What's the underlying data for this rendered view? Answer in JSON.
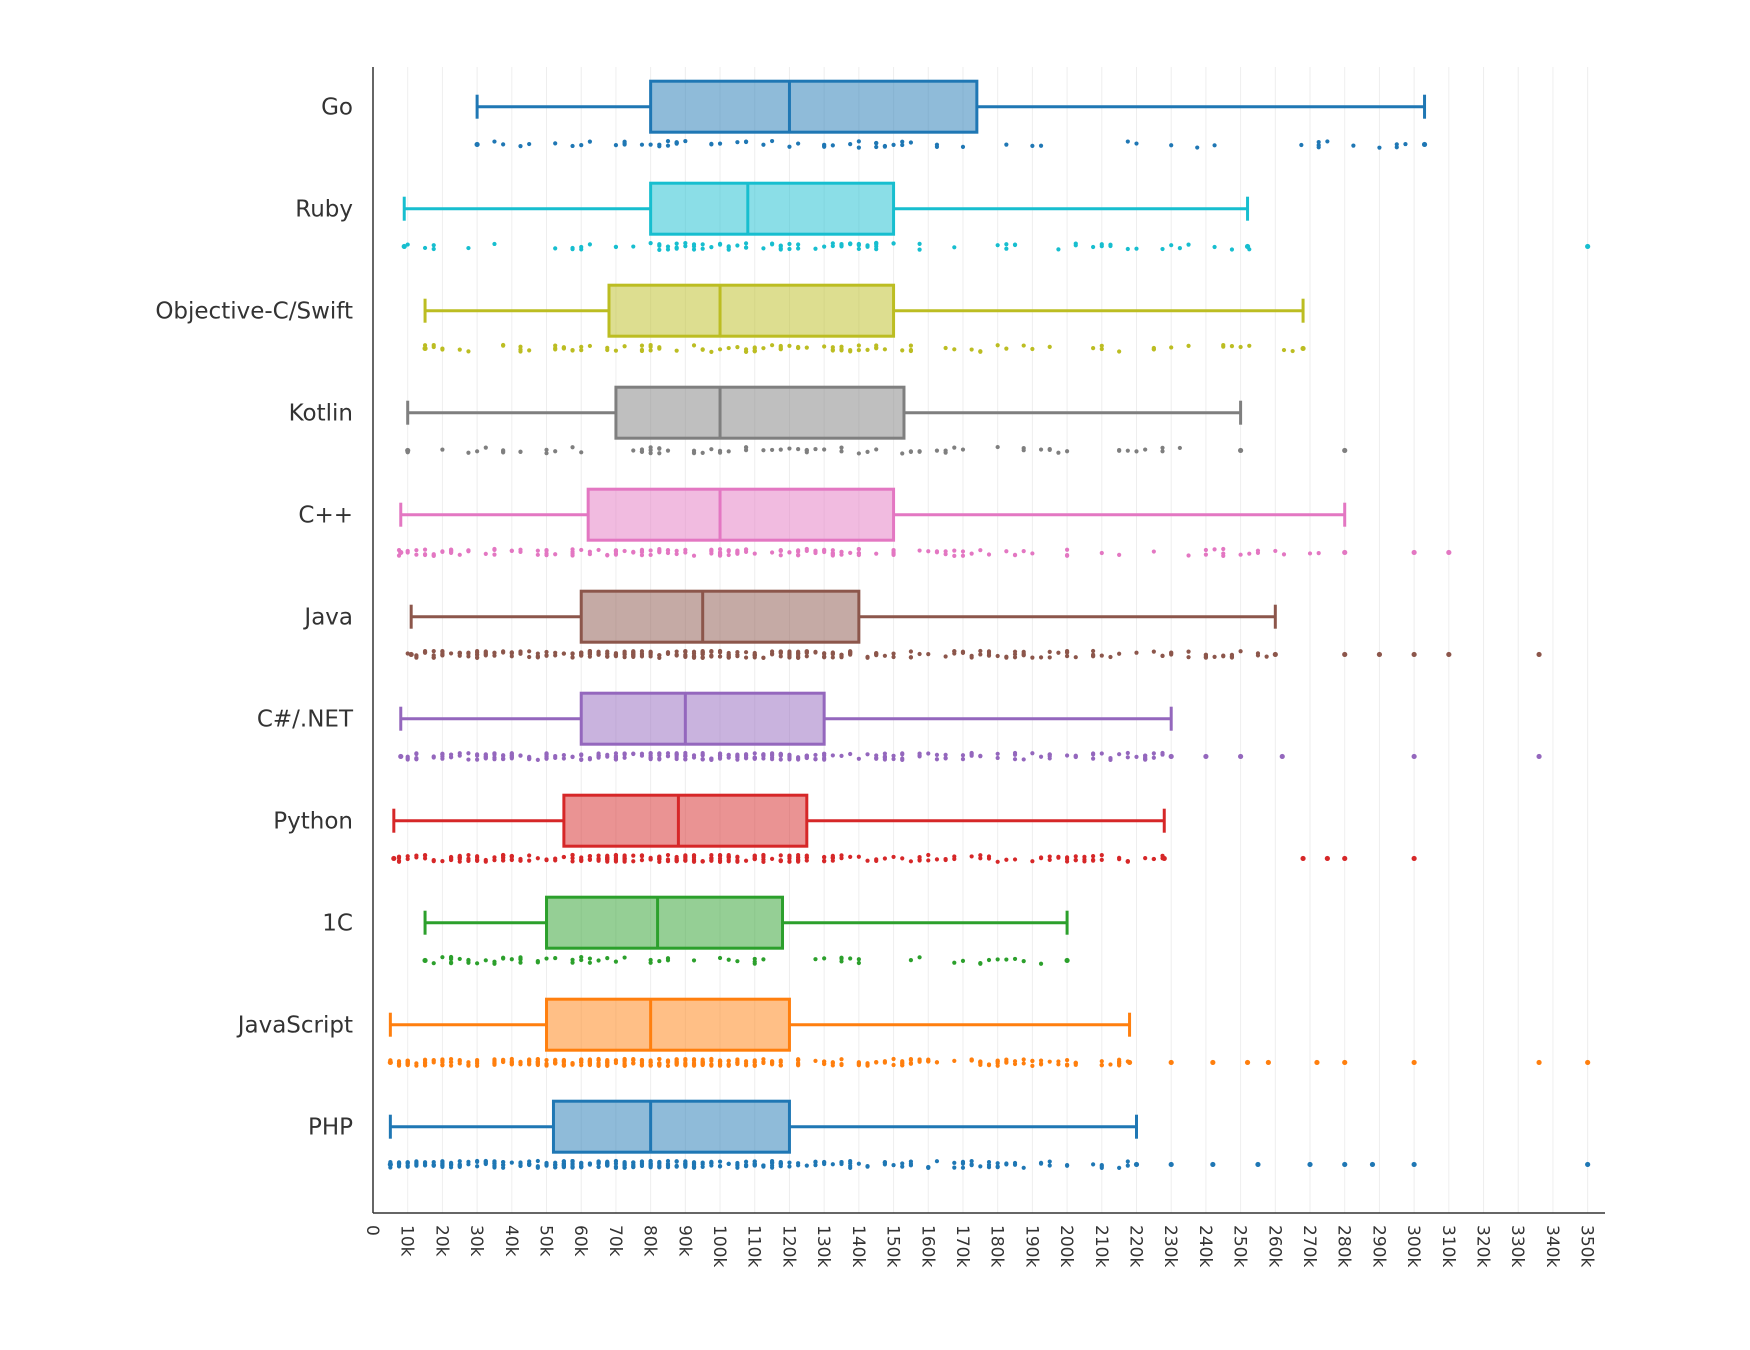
{
  "chart_data": {
    "type": "box",
    "orientation": "horizontal",
    "title": "",
    "xlabel": "",
    "ylabel": "",
    "xlim": [
      0,
      355000
    ],
    "grid": true,
    "legend": "none",
    "x_ticks": [
      0,
      10000,
      20000,
      30000,
      40000,
      50000,
      60000,
      70000,
      80000,
      90000,
      100000,
      110000,
      120000,
      130000,
      140000,
      150000,
      160000,
      170000,
      180000,
      190000,
      200000,
      210000,
      220000,
      230000,
      240000,
      250000,
      260000,
      270000,
      280000,
      290000,
      300000,
      310000,
      320000,
      330000,
      340000,
      350000
    ],
    "x_tick_labels": [
      "0",
      "10k",
      "20k",
      "30k",
      "40k",
      "50k",
      "60k",
      "70k",
      "80k",
      "90k",
      "100k",
      "110k",
      "120k",
      "130k",
      "140k",
      "150k",
      "160k",
      "170k",
      "180k",
      "190k",
      "200k",
      "210k",
      "220k",
      "230k",
      "240k",
      "250k",
      "260k",
      "270k",
      "280k",
      "290k",
      "300k",
      "310k",
      "320k",
      "330k",
      "340k",
      "350k"
    ],
    "categories": [
      "Go",
      "Ruby",
      "Objective-C/Swift",
      "Kotlin",
      "C++",
      "Java",
      "C#/.NET",
      "Python",
      "1C",
      "JavaScript",
      "PHP"
    ],
    "series": [
      {
        "name": "Go",
        "color": "#1f77b4",
        "min": 30000,
        "q1": 80000,
        "median": 120000,
        "q3": 174000,
        "max": 303000,
        "point_count": 70,
        "outliers": []
      },
      {
        "name": "Ruby",
        "color": "#17becf",
        "min": 9000,
        "q1": 80000,
        "median": 108000,
        "q3": 150000,
        "max": 252000,
        "point_count": 100,
        "outliers": [
          350000
        ]
      },
      {
        "name": "Objective-C/Swift",
        "color": "#bcbd22",
        "min": 15000,
        "q1": 68000,
        "median": 100000,
        "q3": 150000,
        "max": 268000,
        "point_count": 110,
        "outliers": []
      },
      {
        "name": "Kotlin",
        "color": "#7f7f7f",
        "min": 10000,
        "q1": 70000,
        "median": 100000,
        "q3": 153000,
        "max": 250000,
        "point_count": 80,
        "outliers": [
          280000
        ]
      },
      {
        "name": "C++",
        "color": "#e377c2",
        "min": 8000,
        "q1": 62000,
        "median": 100000,
        "q3": 150000,
        "max": 280000,
        "point_count": 180,
        "outliers": [
          300000,
          310000
        ]
      },
      {
        "name": "Java",
        "color": "#8c564b",
        "min": 11000,
        "q1": 60000,
        "median": 95000,
        "q3": 140000,
        "max": 260000,
        "point_count": 320,
        "outliers": [
          280000,
          290000,
          300000,
          310000,
          336000
        ]
      },
      {
        "name": "C#/.NET",
        "color": "#9467bd",
        "min": 8000,
        "q1": 60000,
        "median": 90000,
        "q3": 130000,
        "max": 230000,
        "point_count": 280,
        "outliers": [
          240000,
          250000,
          262000,
          300000,
          336000
        ]
      },
      {
        "name": "Python",
        "color": "#d62728",
        "min": 6000,
        "q1": 55000,
        "median": 88000,
        "q3": 125000,
        "max": 228000,
        "point_count": 280,
        "outliers": [
          268000,
          275000,
          280000,
          300000
        ]
      },
      {
        "name": "1C",
        "color": "#2ca02c",
        "min": 15000,
        "q1": 50000,
        "median": 82000,
        "q3": 118000,
        "max": 200000,
        "point_count": 70,
        "outliers": []
      },
      {
        "name": "JavaScript",
        "color": "#ff7f0e",
        "min": 5000,
        "q1": 50000,
        "median": 80000,
        "q3": 120000,
        "max": 218000,
        "point_count": 380,
        "outliers": [
          230000,
          242000,
          252000,
          258000,
          272000,
          280000,
          300000,
          336000,
          350000
        ]
      },
      {
        "name": "PHP",
        "color": "#1f77b4",
        "min": 5000,
        "q1": 52000,
        "median": 80000,
        "q3": 120000,
        "max": 220000,
        "point_count": 330,
        "outliers": [
          230000,
          242000,
          255000,
          270000,
          280000,
          288000,
          300000,
          350000
        ]
      }
    ]
  }
}
